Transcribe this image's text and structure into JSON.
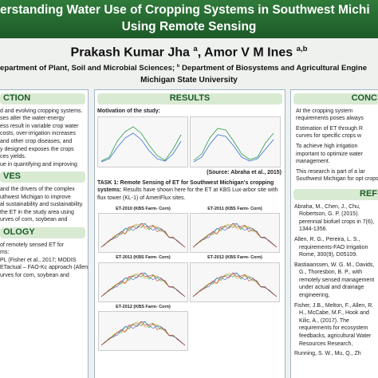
{
  "header": {
    "title_line1": "erstanding Water Use of Cropping Systems in Southwest Michi",
    "title_line2": "Using Remote Sensing",
    "authors": [
      {
        "name": "Prakash Kumar Jha",
        "sup": "a"
      },
      {
        "name": "Amor V M Ines",
        "sup": "a,b"
      }
    ],
    "affiliation_a": "epartment of Plant, Soil and Microbial Sciences;",
    "affiliation_b_sup": "b",
    "affiliation_b": "Department of Biosystems and Agricultural Engine",
    "university": "Michigan State University"
  },
  "left": {
    "intro_heading": "CTION",
    "intro_lines": [
      "d and evolving cropping systems.",
      "ses alter the water-energy",
      "ess result in variable crop water",
      "costs, over-irrigation increases",
      "and other crop diseases, and",
      "y designed exposes the crops",
      "ces yields.",
      "ue in quantifying and improving"
    ],
    "objectives_heading": "VES",
    "objectives_lines": [
      "and the drivers of the complex",
      "uthwest Michigan to improve",
      "al sustainability and sustainability.",
      "the ET in the study area using",
      "urves of corn, soybean and"
    ],
    "methodology_heading": "OLOGY",
    "methodology_lines": [
      "of remotely sensed ET for",
      "ms:",
      "PL (Fisher et al., 2017; MODIS",
      "ETactual – FAO-Kc approach (Allen et al.,",
      "urves for corn, soybean and"
    ]
  },
  "middle": {
    "heading": "RESULTS",
    "motivation": "Motivation of the study:",
    "source": "(Source: Abraha et al., 2015)",
    "task_title": "TASK 1: Remote Sensing of ET for Southwest Michigan's cropping systems:",
    "task_text": "Results have shown here for the ET at KBS Lux-arbor site with flux tower (KL-1) of AmeriFlux sites.",
    "chart_titles": [
      "ET-2010 (KBS Farm- Corn)",
      "ET-2011 (KBS Farm- Corn)",
      "ET-2011 (KBS Farm- Corn)",
      "ET-2012 (KBS Farm- Corn)",
      "ET-2012 (KBS Farm- Corn)"
    ]
  },
  "right": {
    "conclusion_heading": "CONC",
    "conclusion_items": [
      "At the cropping system requirements poses always",
      "Estimation of ET through R curves for specific crops w",
      "To achieve high irrigation important to optimize water management.",
      "This research is part of a lar Southwest Michigan for opt crops."
    ],
    "references_heading": "REF",
    "references": [
      "Abraha, M., Chen, J., Chu, Robertson, G. P. (2015). perennial biofuel crops in 7(6), 1344-1356.",
      "Allen, R. G., Pereira, L. S., requirements-FAO Irrigation Rome, 300(9), D05109.",
      "Bastiaanssen, W. G. M., Davids, G., Thoresbon, B. P., with remotely sensed management under actual and drainage engineering,",
      "Fisher, J.B., Melton, F., Allen, R. H., McCabe, M.F., Hook and Kilic, A., (2017). The requirements for ecosystem feedbacks, agricultural Water Resources Research,",
      "Running, S. W., Mu, Q., Zh"
    ]
  }
}
